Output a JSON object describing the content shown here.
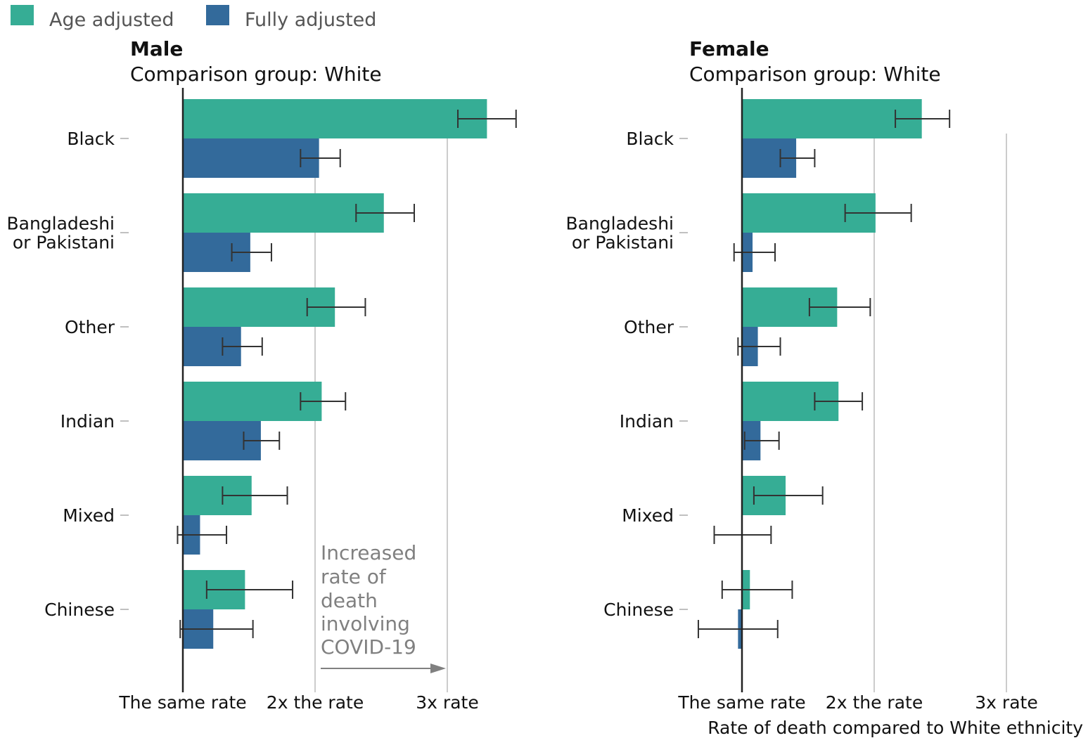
{
  "legend": [
    {
      "name": "Age adjusted",
      "color": "#36ad95"
    },
    {
      "name": "Fully adjusted",
      "color": "#336a9b"
    }
  ],
  "colors": {
    "axis": "#222222",
    "grid": "#cccccc",
    "error_bar": "#333333",
    "annotation": "#808080",
    "text": "#111111"
  },
  "annotation": {
    "lines": [
      "Increased",
      "rate of",
      "death",
      "involving",
      "COVID-19"
    ]
  },
  "x_axis_title": "Rate of death compared to White ethnicity",
  "chart_data": [
    {
      "type": "bar",
      "title": "Male",
      "subtitle": "Comparison group: White",
      "categories": [
        "Black",
        "Bangladeshi or Pakistani",
        "Other",
        "Indian",
        "Mixed",
        "Chinese"
      ],
      "category_lines": [
        [
          "Black"
        ],
        [
          "Bangladeshi",
          "or Pakistani"
        ],
        [
          "Other"
        ],
        [
          "Indian"
        ],
        [
          "Mixed"
        ],
        [
          "Chinese"
        ]
      ],
      "xlim": [
        1,
        3.5
      ],
      "ticks": [
        1,
        2,
        3
      ],
      "tick_labels": [
        "The same rate",
        "2x the rate",
        "3x rate"
      ],
      "series": [
        {
          "name": "Age adjusted",
          "values": [
            3.3,
            2.52,
            2.15,
            2.05,
            1.52,
            1.47
          ],
          "ci_low": [
            3.08,
            2.31,
            1.94,
            1.89,
            1.3,
            1.18
          ],
          "ci_high": [
            3.52,
            2.75,
            2.38,
            2.23,
            1.79,
            1.83
          ]
        },
        {
          "name": "Fully adjusted",
          "values": [
            2.03,
            1.51,
            1.44,
            1.59,
            1.13,
            1.23
          ],
          "ci_low": [
            1.89,
            1.37,
            1.3,
            1.46,
            0.96,
            0.98
          ],
          "ci_high": [
            2.19,
            1.67,
            1.6,
            1.73,
            1.33,
            1.53
          ]
        }
      ]
    },
    {
      "type": "bar",
      "title": "Female",
      "subtitle": "Comparison group: White",
      "categories": [
        "Black",
        "Bangladeshi or Pakistani",
        "Other",
        "Indian",
        "Mixed",
        "Chinese"
      ],
      "category_lines": [
        [
          "Black"
        ],
        [
          "Bangladeshi",
          "or Pakistani"
        ],
        [
          "Other"
        ],
        [
          "Indian"
        ],
        [
          "Mixed"
        ],
        [
          "Chinese"
        ]
      ],
      "xlim": [
        1,
        3.5
      ],
      "ticks": [
        1,
        2,
        3
      ],
      "tick_labels": [
        "The same rate",
        "2x the rate",
        "3x rate"
      ],
      "series": [
        {
          "name": "Age adjusted",
          "values": [
            2.36,
            2.01,
            1.72,
            1.73,
            1.33,
            1.06
          ],
          "ci_low": [
            2.16,
            1.78,
            1.51,
            1.55,
            1.09,
            0.85
          ],
          "ci_high": [
            2.57,
            2.28,
            1.97,
            1.91,
            1.61,
            1.38
          ]
        },
        {
          "name": "Fully adjusted",
          "values": [
            1.41,
            1.08,
            1.12,
            1.14,
            1.0,
            0.97
          ],
          "ci_low": [
            1.29,
            0.94,
            0.97,
            1.02,
            0.79,
            0.67
          ],
          "ci_high": [
            1.55,
            1.25,
            1.29,
            1.28,
            1.22,
            1.27
          ]
        }
      ]
    }
  ]
}
